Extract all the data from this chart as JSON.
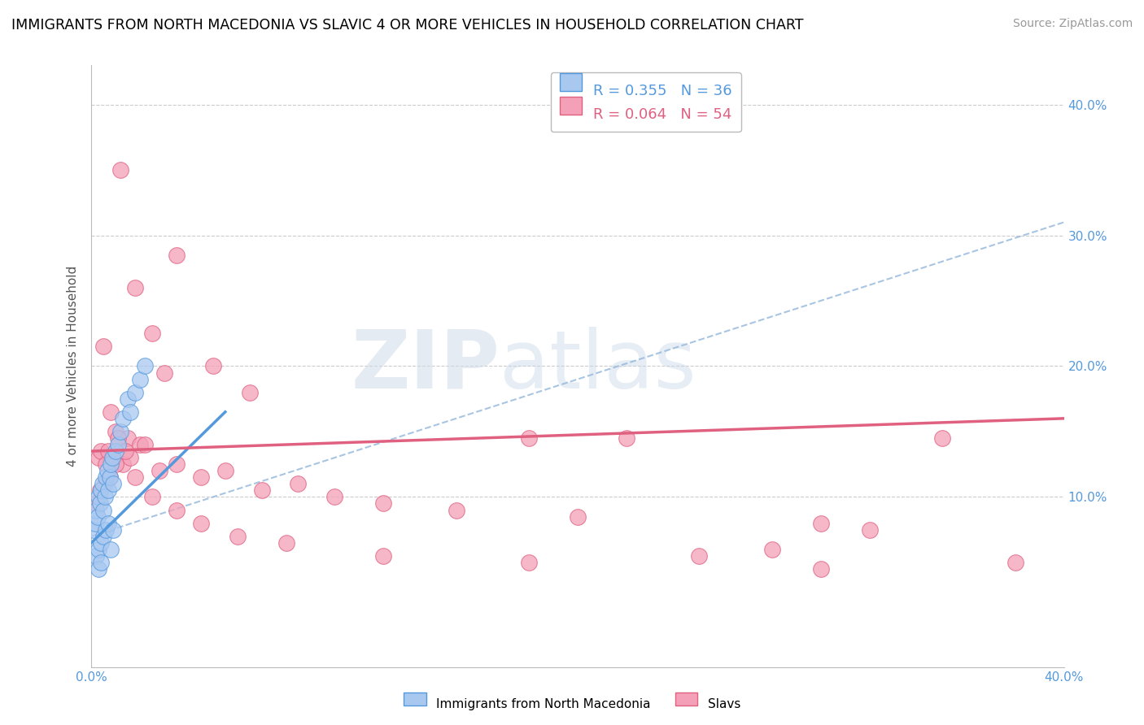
{
  "title": "IMMIGRANTS FROM NORTH MACEDONIA VS SLAVIC 4 OR MORE VEHICLES IN HOUSEHOLD CORRELATION CHART",
  "source": "Source: ZipAtlas.com",
  "ylabel": "4 or more Vehicles in Household",
  "xlim": [
    0.0,
    40.0
  ],
  "ylim": [
    -3.0,
    43.0
  ],
  "legend_r1": "R = 0.355",
  "legend_n1": "N = 36",
  "legend_r2": "R = 0.064",
  "legend_n2": "N = 54",
  "color_blue": "#A8C8F0",
  "color_pink": "#F4A0B8",
  "color_blue_line": "#5599DD",
  "color_pink_line": "#E06080",
  "color_dashed": "#99BBDD",
  "background": "#FFFFFF",
  "watermark_zip": "ZIP",
  "watermark_atlas": "atlas",
  "label_blue": "Immigrants from North Macedonia",
  "label_pink": "Slavs",
  "blue_x": [
    0.1,
    0.15,
    0.2,
    0.25,
    0.3,
    0.35,
    0.4,
    0.45,
    0.5,
    0.55,
    0.6,
    0.65,
    0.7,
    0.75,
    0.8,
    0.85,
    0.9,
    1.0,
    1.1,
    1.2,
    1.3,
    1.5,
    1.6,
    1.8,
    2.0,
    2.2,
    0.2,
    0.3,
    0.4,
    0.5,
    0.6,
    0.7,
    0.8,
    0.9,
    0.3,
    0.4
  ],
  "blue_y": [
    7.5,
    8.0,
    9.0,
    8.5,
    10.0,
    9.5,
    10.5,
    11.0,
    9.0,
    10.0,
    11.5,
    12.0,
    10.5,
    11.5,
    12.5,
    13.0,
    11.0,
    13.5,
    14.0,
    15.0,
    16.0,
    17.5,
    16.5,
    18.0,
    19.0,
    20.0,
    5.5,
    6.0,
    6.5,
    7.0,
    7.5,
    8.0,
    6.0,
    7.5,
    4.5,
    5.0
  ],
  "pink_x": [
    1.2,
    3.5,
    1.8,
    2.5,
    5.0,
    3.0,
    6.5,
    0.5,
    0.8,
    1.0,
    1.5,
    2.0,
    0.3,
    0.4,
    0.6,
    0.7,
    0.9,
    1.1,
    1.3,
    1.6,
    2.2,
    2.8,
    3.5,
    4.5,
    5.5,
    7.0,
    8.5,
    10.0,
    12.0,
    15.0,
    18.0,
    20.0,
    22.0,
    25.0,
    28.0,
    30.0,
    32.0,
    35.0,
    38.0,
    0.2,
    0.35,
    0.55,
    0.75,
    1.0,
    1.4,
    1.8,
    2.5,
    3.5,
    4.5,
    6.0,
    8.0,
    12.0,
    18.0,
    30.0
  ],
  "pink_y": [
    35.0,
    28.5,
    26.0,
    22.5,
    20.0,
    19.5,
    18.0,
    21.5,
    16.5,
    15.0,
    14.5,
    14.0,
    13.0,
    13.5,
    12.5,
    13.5,
    13.0,
    14.5,
    12.5,
    13.0,
    14.0,
    12.0,
    12.5,
    11.5,
    12.0,
    10.5,
    11.0,
    10.0,
    9.5,
    9.0,
    14.5,
    8.5,
    14.5,
    5.5,
    6.0,
    8.0,
    7.5,
    14.5,
    5.0,
    9.5,
    10.5,
    11.0,
    11.5,
    12.5,
    13.5,
    11.5,
    10.0,
    9.0,
    8.0,
    7.0,
    6.5,
    5.5,
    5.0,
    4.5
  ],
  "blue_line_x0": 0.0,
  "blue_line_y0": 6.5,
  "blue_line_x1": 5.5,
  "blue_line_y1": 16.5,
  "pink_line_x0": 0.0,
  "pink_line_y0": 13.5,
  "pink_line_x1": 40.0,
  "pink_line_y1": 16.0,
  "dash_line_x0": 0.0,
  "dash_line_y0": 7.0,
  "dash_line_x1": 40.0,
  "dash_line_y1": 31.0
}
